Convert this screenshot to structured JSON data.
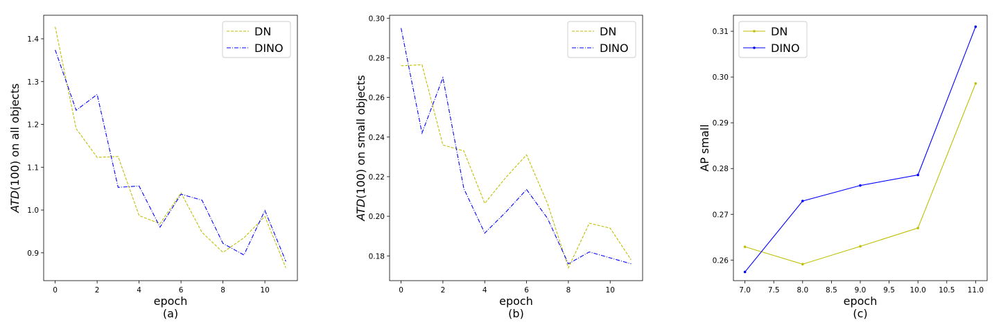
{
  "chart_data": [
    {
      "type": "line",
      "caption": "(a)",
      "xlabel": "epoch",
      "ylabel_italic": "ATD",
      "ylabel_rest": "(100) on all objects",
      "xlim": [
        -0.55,
        11.55
      ],
      "ylim": [
        0.835,
        1.455
      ],
      "xticks": [
        0,
        2,
        4,
        6,
        8,
        10
      ],
      "yticks": [
        0.9,
        1.0,
        1.1,
        1.2,
        1.3,
        1.4
      ],
      "xtick_labels": [
        "0",
        "2",
        "4",
        "6",
        "8",
        "10"
      ],
      "ytick_labels": [
        "0.9",
        "1.0",
        "1.1",
        "1.2",
        "1.3",
        "1.4"
      ],
      "legend": "top-right",
      "x": [
        0,
        1,
        2,
        3,
        4,
        5,
        6,
        7,
        8,
        9,
        10,
        11
      ],
      "series": [
        {
          "name": "DN",
          "color": "#bfbf00",
          "style": "dashed",
          "markers": false,
          "values": [
            1.428,
            1.19,
            1.123,
            1.125,
            0.987,
            0.968,
            1.04,
            0.948,
            0.901,
            0.935,
            0.985,
            0.865
          ]
        },
        {
          "name": "DINO",
          "color": "#0000ff",
          "style": "dashdot",
          "markers": false,
          "values": [
            1.374,
            1.233,
            1.27,
            1.053,
            1.056,
            0.96,
            1.037,
            1.023,
            0.922,
            0.895,
            0.999,
            0.88
          ]
        }
      ]
    },
    {
      "type": "line",
      "caption": "(b)",
      "xlabel": "epoch",
      "ylabel_italic": "ATD",
      "ylabel_rest": "(100) on small objects",
      "xlim": [
        -0.55,
        11.55
      ],
      "ylim": [
        0.1675,
        0.3015
      ],
      "xticks": [
        0,
        2,
        4,
        6,
        8,
        10
      ],
      "yticks": [
        0.18,
        0.2,
        0.22,
        0.24,
        0.26,
        0.28,
        0.3
      ],
      "xtick_labels": [
        "0",
        "2",
        "4",
        "6",
        "8",
        "10"
      ],
      "ytick_labels": [
        "0.18",
        "0.20",
        "0.22",
        "0.24",
        "0.26",
        "0.28",
        "0.30"
      ],
      "legend": "top-right",
      "x": [
        0,
        1,
        2,
        3,
        4,
        5,
        6,
        7,
        8,
        9,
        10,
        11
      ],
      "series": [
        {
          "name": "DN",
          "color": "#bfbf00",
          "style": "dashed",
          "markers": false,
          "values": [
            0.276,
            0.2765,
            0.236,
            0.233,
            0.2065,
            0.2195,
            0.231,
            0.2065,
            0.174,
            0.1965,
            0.194,
            0.178
          ]
        },
        {
          "name": "DINO",
          "color": "#0000ff",
          "style": "dashdot",
          "markers": false,
          "values": [
            0.295,
            0.242,
            0.27,
            0.214,
            0.1915,
            0.202,
            0.2135,
            0.199,
            0.176,
            0.182,
            0.179,
            0.176
          ]
        }
      ]
    },
    {
      "type": "line",
      "caption": "(c)",
      "xlabel": "epoch",
      "ylabel_italic": "",
      "ylabel_rest": "AP small",
      "xlim": [
        6.8,
        11.2
      ],
      "ylim": [
        0.2555,
        0.3135
      ],
      "xticks": [
        7.0,
        7.5,
        8.0,
        8.5,
        9.0,
        9.5,
        10.0,
        10.5,
        11.0
      ],
      "yticks": [
        0.26,
        0.27,
        0.28,
        0.29,
        0.3,
        0.31
      ],
      "xtick_labels": [
        "7.0",
        "7.5",
        "8.0",
        "8.5",
        "9.0",
        "9.5",
        "10.0",
        "10.5",
        "11.0"
      ],
      "ytick_labels": [
        "0.26",
        "0.27",
        "0.28",
        "0.29",
        "0.30",
        "0.31"
      ],
      "legend": "top-left",
      "x": [
        7,
        8,
        9,
        10,
        11
      ],
      "series": [
        {
          "name": "DN",
          "color": "#bfbf00",
          "style": "solid",
          "markers": true,
          "values": [
            0.2629,
            0.2591,
            0.263,
            0.267,
            0.2986
          ]
        },
        {
          "name": "DINO",
          "color": "#0000ff",
          "style": "solid",
          "markers": true,
          "values": [
            0.2574,
            0.2729,
            0.2763,
            0.2786,
            0.311
          ]
        }
      ]
    }
  ]
}
